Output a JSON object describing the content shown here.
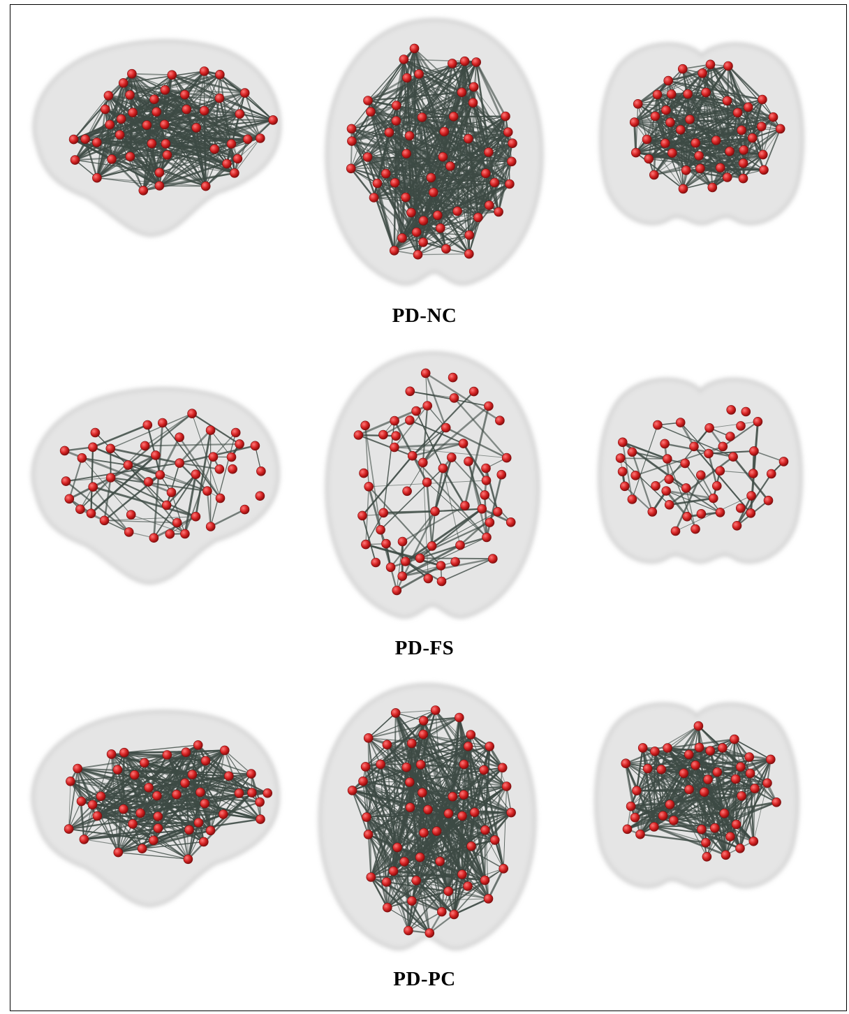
{
  "figure": {
    "rows": [
      {
        "id": "nc",
        "label": "PD-NC",
        "density": "dense",
        "views": [
          "sagittal",
          "axial",
          "coronal"
        ]
      },
      {
        "id": "fs",
        "label": "PD-FS",
        "density": "sparse",
        "views": [
          "sagittal",
          "axial",
          "coronal"
        ]
      },
      {
        "id": "pc",
        "label": "PD-PC",
        "density": "dense",
        "views": [
          "sagittal",
          "axial",
          "coronal"
        ]
      }
    ]
  },
  "colors": {
    "brain_surface": "#dcdcdc",
    "brain_outline": "#c8c8c8",
    "edge": "#3d4a44",
    "node": "#d42222",
    "node_highlight": "#ff7a7a",
    "caption_text": "#000000",
    "border": "#000000"
  }
}
